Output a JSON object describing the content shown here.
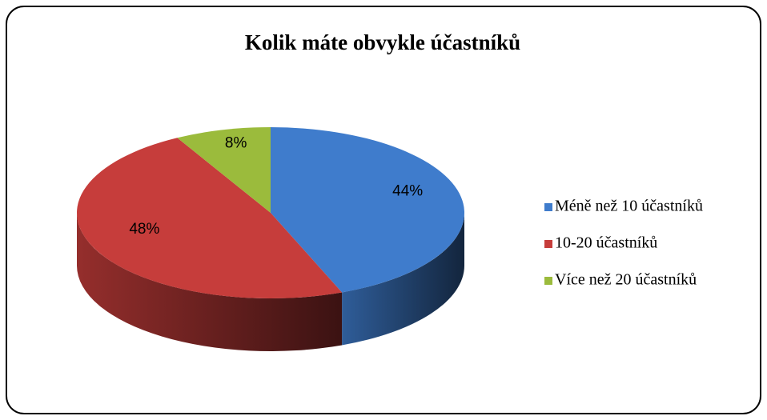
{
  "chart_data": {
    "type": "pie",
    "title": "Kolik máte obvykle účastníků",
    "categories": [
      "Méně než 10 účastníků",
      "10-20 účastníků",
      "Více než 20 účastníků"
    ],
    "values": [
      44,
      48,
      8
    ],
    "value_labels": [
      "44%",
      "48%",
      "8%"
    ],
    "colors": [
      "#3f7ccc",
      "#c63d3b",
      "#9bbb3c"
    ],
    "legend": "right"
  }
}
